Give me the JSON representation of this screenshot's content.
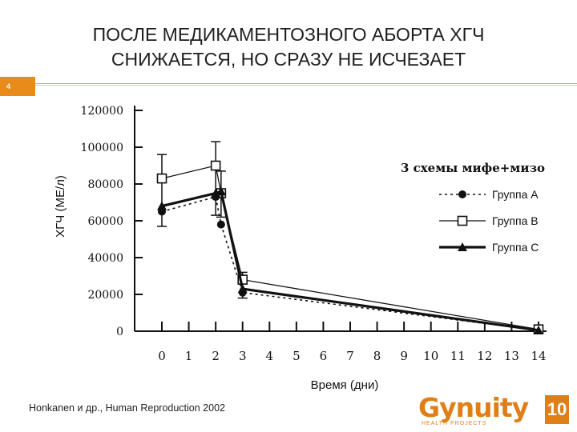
{
  "slide": {
    "title_line1": "ПОСЛЕ МЕДИКАМЕНТОЗНОГО АБОРТА ХГЧ",
    "title_line2": "СНИЖАЕТСЯ, НО СРАЗУ НЕ ИСЧЕЗАЕТ",
    "slide_number": "4",
    "source": "Honkanen и др., Human Reproduction 2002",
    "logo_text": "Gynuity",
    "logo_subtext": "HEALTH PROJECTS",
    "logo_badge": "10"
  },
  "colors": {
    "accent": "#e98b1a",
    "text": "#1e1e1e",
    "chart_ink": "#111111"
  },
  "chart_data": {
    "type": "line",
    "title": "",
    "xlabel": "Время (дни)",
    "ylabel": "ХГЧ (МЕ/л)",
    "legend_title": "3 схемы мифе+мизо",
    "legend_position": "right",
    "xlim": [
      0,
      14
    ],
    "ylim": [
      0,
      120000
    ],
    "x_ticks": [
      "0",
      "1",
      "2",
      "3",
      "4",
      "5",
      "6",
      "7",
      "8",
      "9",
      "10",
      "11",
      "12",
      "13",
      "14"
    ],
    "y_ticks": [
      "0",
      "20000",
      "40000",
      "60000",
      "80000",
      "100000",
      "120000"
    ],
    "grid": false,
    "series": [
      {
        "name": "Группа А",
        "marker": "circle",
        "line": "dotted",
        "x": [
          0,
          2,
          2.2,
          3,
          14
        ],
        "y": [
          65000,
          73000,
          58000,
          21000,
          500
        ]
      },
      {
        "name": "Группа В",
        "marker": "square",
        "line": "thin",
        "x": [
          0,
          2,
          2.2,
          3,
          14
        ],
        "y": [
          83000,
          90000,
          75000,
          28000,
          1000
        ]
      },
      {
        "name": "Группа С",
        "marker": "triangle",
        "line": "thick",
        "x": [
          0,
          2,
          2.2,
          3,
          14
        ],
        "y": [
          68000,
          75000,
          76000,
          23000,
          500
        ]
      }
    ],
    "error_bars": [
      {
        "x": 0,
        "low": 57000,
        "high": 96000
      },
      {
        "x": 2,
        "low": 63000,
        "high": 103000
      },
      {
        "x": 2.2,
        "low": 62000,
        "high": 87000
      },
      {
        "x": 3,
        "low": 18000,
        "high": 32000
      }
    ]
  }
}
